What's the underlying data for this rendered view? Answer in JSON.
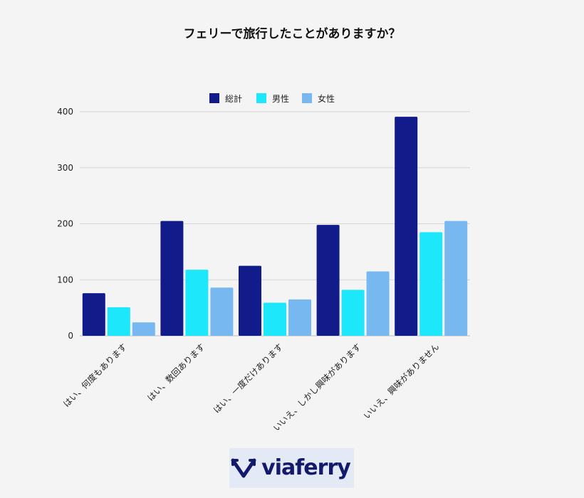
{
  "chart_data": {
    "type": "bar",
    "title": "フェリーで旅行したことがありますか？",
    "categories": [
      "はい、何度もあります",
      "はい、数回あります",
      "はい、一度だけあります",
      "いいえ、しかし興味があります",
      "いいえ、興味がありません"
    ],
    "series": [
      {
        "name": "総計",
        "color": "#111b8a",
        "values": [
          76,
          205,
          125,
          198,
          391
        ]
      },
      {
        "name": "男性",
        "color": "#1de8fb",
        "values": [
          51,
          118,
          59,
          82,
          185
        ]
      },
      {
        "name": "女性",
        "color": "#78b8f0",
        "values": [
          24,
          86,
          65,
          115,
          205
        ]
      }
    ],
    "ylim": [
      0,
      400
    ],
    "yticks": [
      0,
      100,
      200,
      300,
      400
    ],
    "grid": true,
    "legend_position": "top-center",
    "xlabel": "",
    "ylabel": ""
  },
  "logo": {
    "text": "viaferry",
    "color": "#13196b"
  }
}
